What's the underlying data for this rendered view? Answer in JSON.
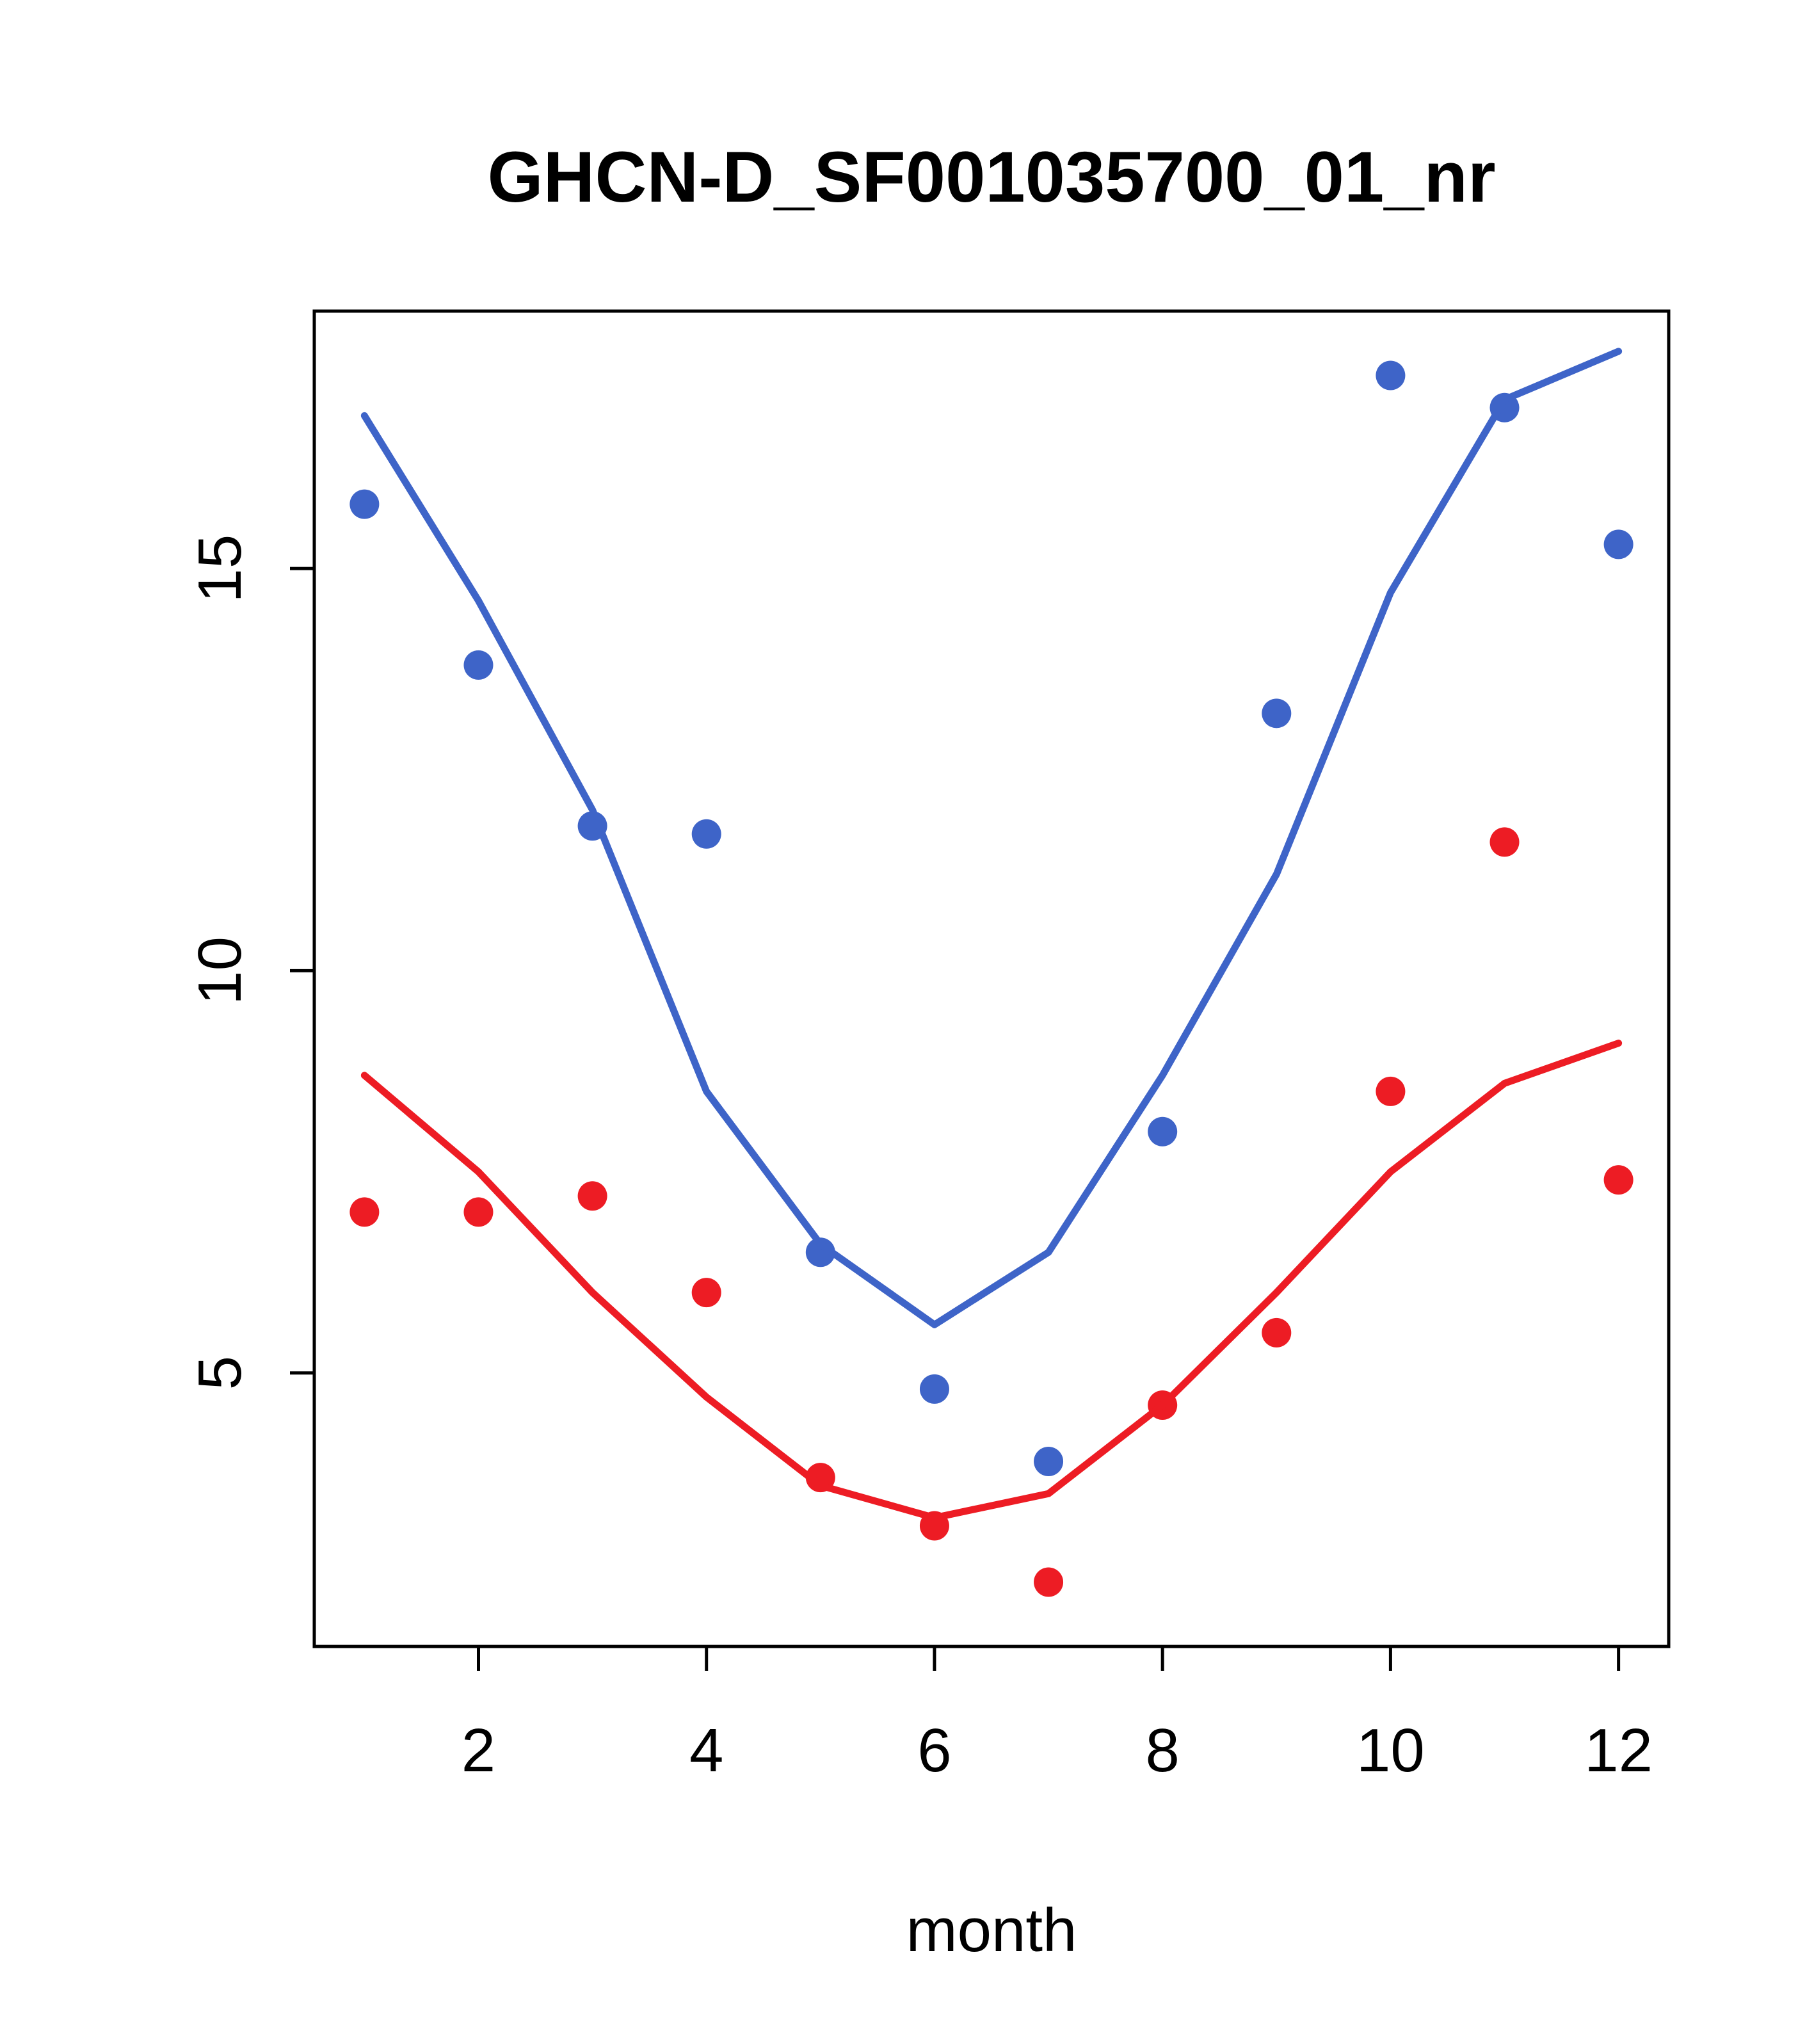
{
  "title": "GHCN-D_SF001035700_01_nr",
  "chart_data": {
    "type": "scatter",
    "title": "GHCN-D_SF001035700_01_nr",
    "xlabel": "month",
    "ylabel": "",
    "x": [
      1,
      2,
      3,
      4,
      5,
      6,
      7,
      8,
      9,
      10,
      11,
      12
    ],
    "x_ticks": [
      2,
      4,
      6,
      8,
      10,
      12
    ],
    "y_ticks": [
      5,
      10,
      15
    ],
    "xlim": [
      0.56,
      12.44
    ],
    "ylim": [
      1.6,
      18.2
    ],
    "grid": "off",
    "legend": "none",
    "series": [
      {
        "name": "blue-observations",
        "type": "points",
        "color": "#3E64C8",
        "values": [
          15.8,
          13.8,
          11.8,
          11.7,
          6.5,
          4.8,
          3.9,
          8.0,
          13.2,
          17.4,
          17.0,
          15.3
        ]
      },
      {
        "name": "blue-smooth",
        "type": "line",
        "color": "#3E64C8",
        "values": [
          16.9,
          14.6,
          12.0,
          8.5,
          6.6,
          5.6,
          6.5,
          8.7,
          11.2,
          14.7,
          17.1,
          17.7
        ]
      },
      {
        "name": "red-observations",
        "type": "points",
        "color": "#ED1C24",
        "values": [
          7.0,
          7.0,
          7.2,
          6.0,
          3.7,
          3.1,
          2.4,
          4.6,
          5.5,
          8.5,
          11.6,
          7.4
        ]
      },
      {
        "name": "red-smooth",
        "type": "line",
        "color": "#ED1C24",
        "values": [
          8.7,
          7.5,
          6.0,
          4.7,
          3.6,
          3.2,
          3.5,
          4.6,
          6.0,
          7.5,
          8.6,
          9.1
        ]
      }
    ]
  }
}
